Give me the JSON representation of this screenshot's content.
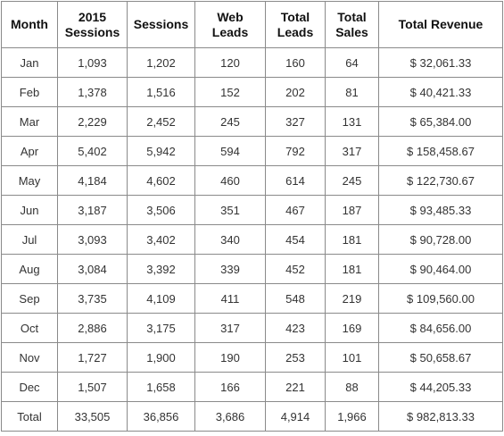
{
  "table": {
    "header": [
      "Month",
      "2015 Sessions",
      "Sessions",
      "Web Leads",
      "Total Leads",
      "Total Sales",
      "Total Revenue"
    ],
    "rows": [
      [
        "Jan",
        "1,093",
        "1,202",
        "120",
        "160",
        "64",
        "$ 32,061.33"
      ],
      [
        "Feb",
        "1,378",
        "1,516",
        "152",
        "202",
        "81",
        "$ 40,421.33"
      ],
      [
        "Mar",
        "2,229",
        "2,452",
        "245",
        "327",
        "131",
        "$ 65,384.00"
      ],
      [
        "Apr",
        "5,402",
        "5,942",
        "594",
        "792",
        "317",
        "$ 158,458.67"
      ],
      [
        "May",
        "4,184",
        "4,602",
        "460",
        "614",
        "245",
        "$ 122,730.67"
      ],
      [
        "Jun",
        "3,187",
        "3,506",
        "351",
        "467",
        "187",
        "$ 93,485.33"
      ],
      [
        "Jul",
        "3,093",
        "3,402",
        "340",
        "454",
        "181",
        "$ 90,728.00"
      ],
      [
        "Aug",
        "3,084",
        "3,392",
        "339",
        "452",
        "181",
        "$ 90,464.00"
      ],
      [
        "Sep",
        "3,735",
        "4,109",
        "411",
        "548",
        "219",
        "$ 109,560.00"
      ],
      [
        "Oct",
        "2,886",
        "3,175",
        "317",
        "423",
        "169",
        "$ 84,656.00"
      ],
      [
        "Nov",
        "1,727",
        "1,900",
        "190",
        "253",
        "101",
        "$ 50,658.67"
      ],
      [
        "Dec",
        "1,507",
        "1,658",
        "166",
        "221",
        "88",
        "$ 44,205.33"
      ],
      [
        "Total",
        "33,505",
        "36,856",
        "3,686",
        "4,914",
        "1,966",
        "$ 982,813.33"
      ]
    ]
  }
}
